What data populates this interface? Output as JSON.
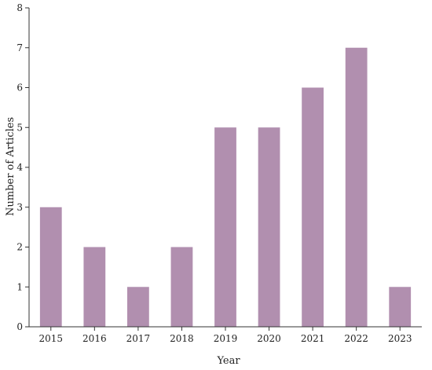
{
  "chart_data": {
    "type": "bar",
    "categories": [
      "2015",
      "2016",
      "2017",
      "2018",
      "2019",
      "2020",
      "2021",
      "2022",
      "2023"
    ],
    "values": [
      3,
      2,
      1,
      2,
      5,
      5,
      6,
      7,
      1
    ],
    "title": "",
    "xlabel": "Year",
    "ylabel": "Number of Articles",
    "ylim": [
      0,
      8
    ],
    "yticks": [
      0,
      1,
      2,
      3,
      4,
      5,
      6,
      7,
      8
    ],
    "grid": false,
    "legend": "none",
    "bar_color": "#b18faf"
  }
}
